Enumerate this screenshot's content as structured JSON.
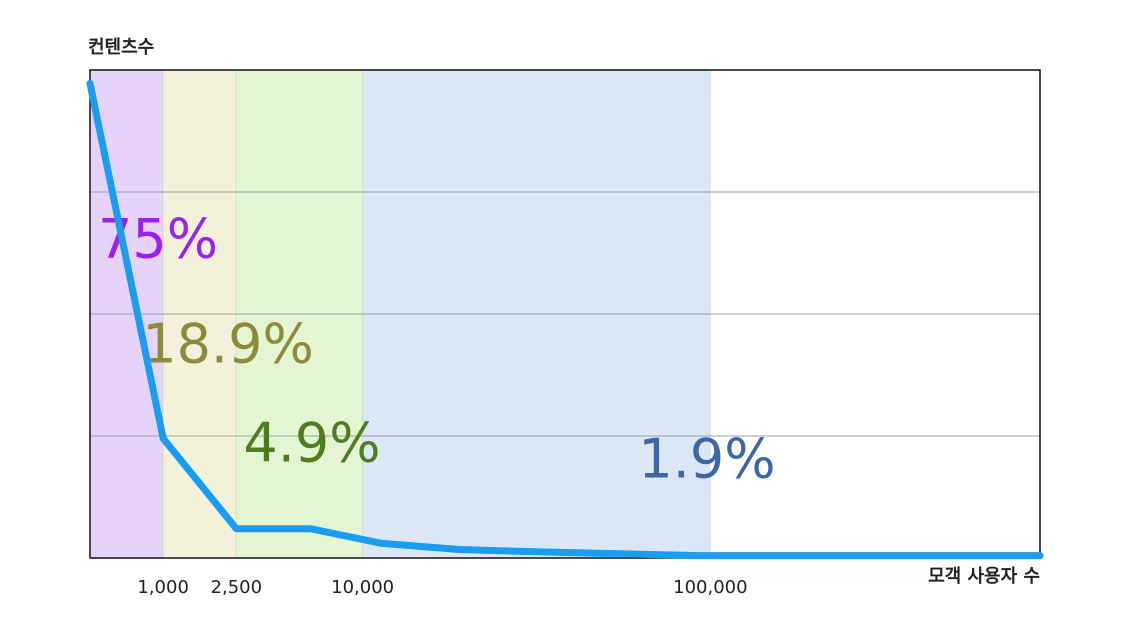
{
  "chart_data": {
    "type": "line",
    "y_label": "컨텐츠수",
    "x_label": "모객 사용자 수",
    "xlim": [
      0,
      185000
    ],
    "xticks": [
      {
        "value": 1000,
        "label": "1,000"
      },
      {
        "value": 2500,
        "label": "2,500"
      },
      {
        "value": 10000,
        "label": "10,000"
      },
      {
        "value": 100000,
        "label": "100,000"
      }
    ],
    "ylim": [
      0,
      4
    ],
    "yticks": [
      1,
      2,
      3
    ],
    "grid": true,
    "series": [
      {
        "color": "#1a9cf0",
        "x": [
          0,
          1000,
          2500,
          6900,
          15000,
          35000,
          56000,
          97000,
          185000
        ],
        "values": [
          3.89,
          0.98,
          0.24,
          0.24,
          0.12,
          0.07,
          0.05,
          0.02,
          0.02
        ]
      }
    ],
    "regions": {
      "values": [
        75,
        18.9,
        4.9,
        1.9
      ],
      "value_labels": [
        "75%",
        "18.9%",
        "4.9%",
        "1.9%"
      ],
      "colors": [
        "#e6d3f9",
        "#f3f1da",
        "#e4f5d4",
        "#dbe7f5"
      ],
      "label_colors": [
        "#9b1ff0",
        "#8f8a3a",
        "#4e7d1f",
        "#3a67a8"
      ]
    }
  }
}
